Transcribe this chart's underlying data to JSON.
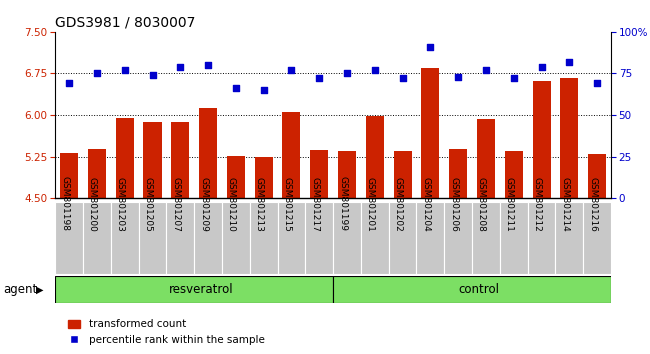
{
  "title": "GDS3981 / 8030007",
  "samples": [
    "GSM801198",
    "GSM801200",
    "GSM801203",
    "GSM801205",
    "GSM801207",
    "GSM801209",
    "GSM801210",
    "GSM801213",
    "GSM801215",
    "GSM801217",
    "GSM801199",
    "GSM801201",
    "GSM801202",
    "GSM801204",
    "GSM801206",
    "GSM801208",
    "GSM801211",
    "GSM801212",
    "GSM801214",
    "GSM801216"
  ],
  "bar_values": [
    5.32,
    5.38,
    5.95,
    5.87,
    5.88,
    6.12,
    5.27,
    5.25,
    6.05,
    5.37,
    5.36,
    5.99,
    5.36,
    6.85,
    5.38,
    5.93,
    5.36,
    6.62,
    6.67,
    5.3
  ],
  "scatter_values": [
    69,
    75,
    77,
    74,
    79,
    80,
    66,
    65,
    77,
    72,
    75,
    77,
    72,
    91,
    73,
    77,
    72,
    79,
    82,
    69
  ],
  "ylim_left": [
    4.5,
    7.5
  ],
  "ylim_right": [
    0,
    100
  ],
  "yticks_left": [
    4.5,
    5.25,
    6.0,
    6.75,
    7.5
  ],
  "yticks_right": [
    0,
    25,
    50,
    75,
    100
  ],
  "ytick_labels_right": [
    "0",
    "25",
    "50",
    "75",
    "100%"
  ],
  "hlines": [
    5.25,
    6.0,
    6.75
  ],
  "bar_color": "#cc2200",
  "scatter_color": "#0000cc",
  "resveratrol_samples": 10,
  "control_samples": 10,
  "group_labels": [
    "resveratrol",
    "control"
  ],
  "agent_label": "agent",
  "legend_bar_label": "transformed count",
  "legend_scatter_label": "percentile rank within the sample",
  "bar_width": 0.65,
  "left_tick_color": "#cc2200",
  "right_tick_color": "#0000cc",
  "title_fontsize": 10,
  "tick_fontsize": 7.5,
  "label_fontsize": 9,
  "xtick_bg": "#c8c8c8",
  "group_bg": "#7cdf64"
}
